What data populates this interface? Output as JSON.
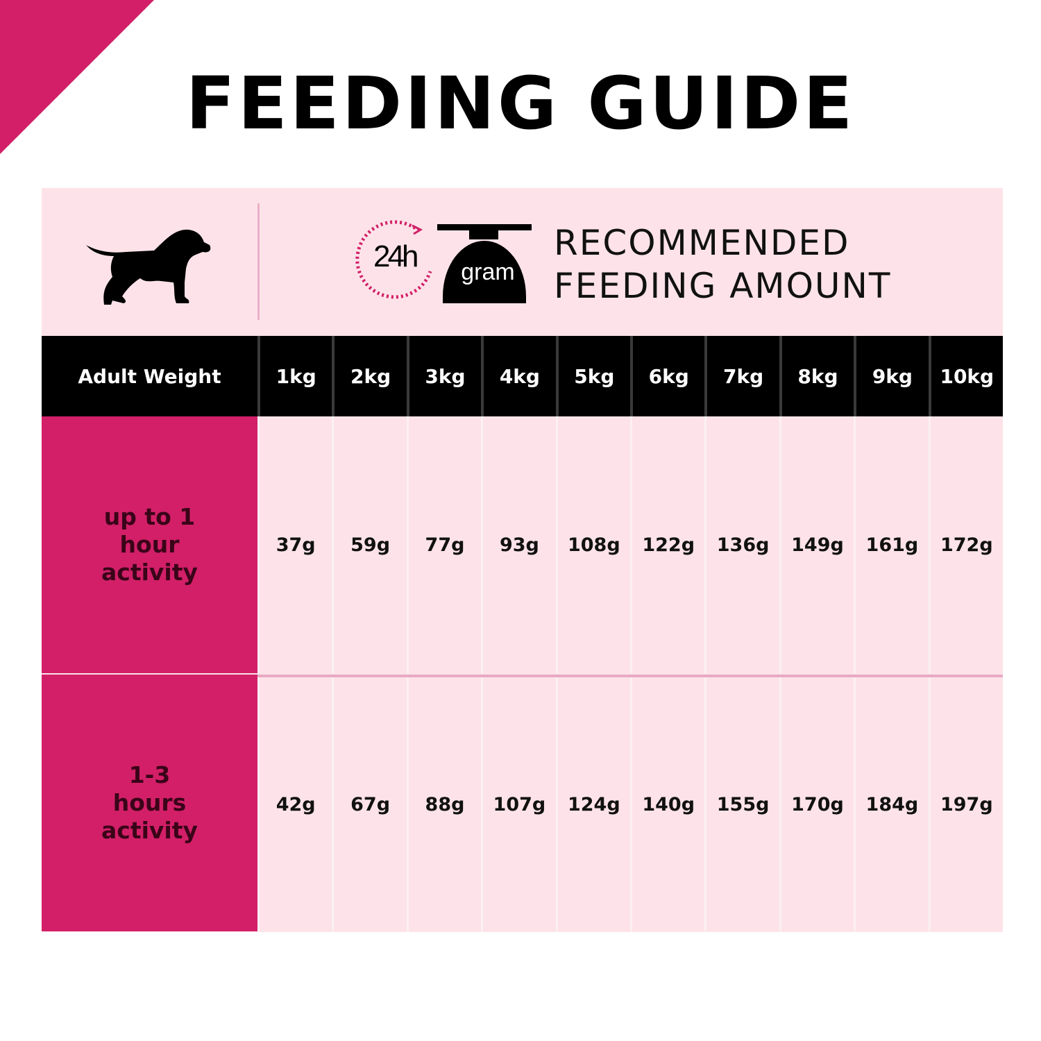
{
  "title": "FEEDING GUIDE",
  "header": {
    "clock_label": "24h",
    "scale_label": "gram",
    "recommended_line1": "RECOMMENDED",
    "recommended_line2": "FEEDING AMOUNT"
  },
  "table": {
    "header_label": "Adult Weight",
    "weights": [
      "1kg",
      "2kg",
      "3kg",
      "4kg",
      "5kg",
      "6kg",
      "7kg",
      "8kg",
      "9kg",
      "10kg"
    ],
    "rows": [
      {
        "label": "up to 1 hour activity",
        "values": [
          "37g",
          "59g",
          "77g",
          "93g",
          "108g",
          "122g",
          "136g",
          "149g",
          "161g",
          "172g"
        ]
      },
      {
        "label": "1-3 hours activity",
        "values": [
          "42g",
          "67g",
          "88g",
          "107g",
          "124g",
          "140g",
          "155g",
          "170g",
          "184g",
          "197g"
        ]
      }
    ]
  },
  "colors": {
    "accent": "#d21f68",
    "panel": "#fde3e9",
    "header_bg": "#000000"
  }
}
